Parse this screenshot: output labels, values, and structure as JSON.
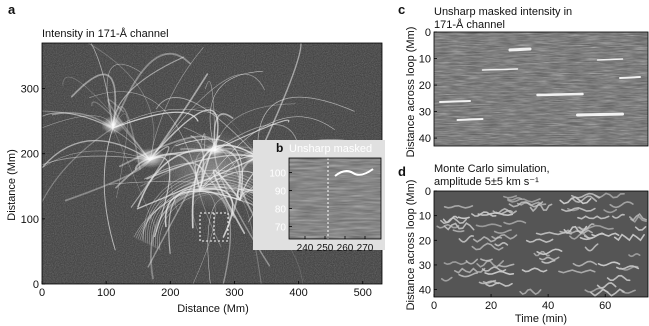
{
  "panel_labels": {
    "a": "a",
    "b": "b",
    "c": "c",
    "d": "d"
  },
  "panel_a": {
    "title": "Intensity in 171-Å channel",
    "xlabel": "Distance (Mm)",
    "ylabel": "Distance (Mm)",
    "xticks": [
      "0",
      "100",
      "200",
      "300",
      "400",
      "500"
    ],
    "yticks": [
      "0",
      "100",
      "200",
      "300"
    ]
  },
  "panel_b": {
    "title": "Unsharp masked",
    "xticks": [
      "240",
      "250",
      "260",
      "270"
    ],
    "yticks": [
      "100",
      "90",
      "80",
      "70"
    ]
  },
  "panel_c": {
    "title_line1": "Unsharp masked intensity in",
    "title_line2": "171-Å channel",
    "ylabel": "Distance across loop (Mm)",
    "yticks": [
      "0",
      "10",
      "20",
      "30",
      "40"
    ]
  },
  "panel_d": {
    "title_line1": "Monte Carlo simulation,",
    "title_line2": "amplitude 5±5 km s⁻¹",
    "ylabel": "Distance across loop (Mm)",
    "xlabel": "Time (min)",
    "xticks": [
      "0",
      "20",
      "40",
      "60"
    ],
    "yticks": [
      "0",
      "10",
      "20",
      "30",
      "40"
    ]
  },
  "chart_data": [
    {
      "type": "image",
      "title": "Intensity in 171-Å channel",
      "xlabel": "Distance (Mm)",
      "ylabel": "Distance (Mm)",
      "xlim": [
        0,
        530
      ],
      "ylim": [
        0,
        370
      ]
    },
    {
      "type": "image",
      "title": "Unsharp masked",
      "xlim": [
        232,
        278
      ],
      "ylim": [
        63,
        108
      ]
    },
    {
      "type": "image",
      "title": "Unsharp masked intensity in 171-Å channel",
      "ylabel": "Distance across loop (Mm)",
      "ylim": [
        0,
        43
      ]
    },
    {
      "type": "image",
      "title": "Monte Carlo simulation, amplitude 5±5 km s⁻¹",
      "xlabel": "Time (min)",
      "ylabel": "Distance across loop (Mm)",
      "xlim": [
        0,
        75
      ],
      "ylim": [
        0,
        43
      ]
    }
  ]
}
